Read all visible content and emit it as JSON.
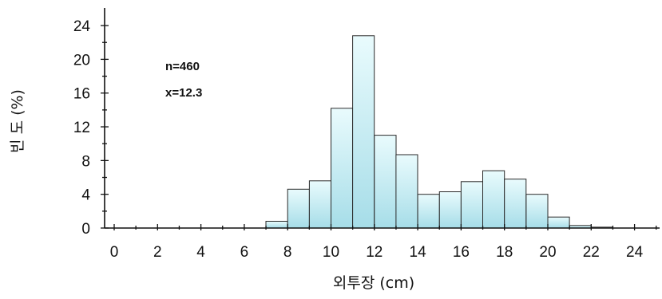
{
  "chart_data": {
    "type": "bar",
    "title": "",
    "xlabel": "외투장 (cm)",
    "ylabel": "빈 도 (%)",
    "xlim": [
      0,
      25
    ],
    "ylim": [
      0,
      24
    ],
    "x_ticks": [
      0,
      2,
      4,
      6,
      8,
      10,
      12,
      14,
      16,
      18,
      20,
      22,
      24
    ],
    "y_ticks": [
      0,
      4,
      8,
      12,
      16,
      20,
      24
    ],
    "bin_width": 1,
    "bin_starts": [
      7,
      8,
      9,
      10,
      11,
      12,
      13,
      14,
      15,
      16,
      17,
      18,
      19,
      20,
      21,
      22
    ],
    "values": [
      0.8,
      4.6,
      5.6,
      14.2,
      22.8,
      11.0,
      8.7,
      4.0,
      4.3,
      5.5,
      6.8,
      5.8,
      4.0,
      1.3,
      0.3,
      0.1
    ],
    "annotations": [
      "n=460",
      "x=12.3"
    ],
    "grid": false,
    "colors": {
      "bar_top": "#e9fbfd",
      "bar_bottom": "#a6dde8",
      "edge": "#2a2a2a"
    }
  }
}
